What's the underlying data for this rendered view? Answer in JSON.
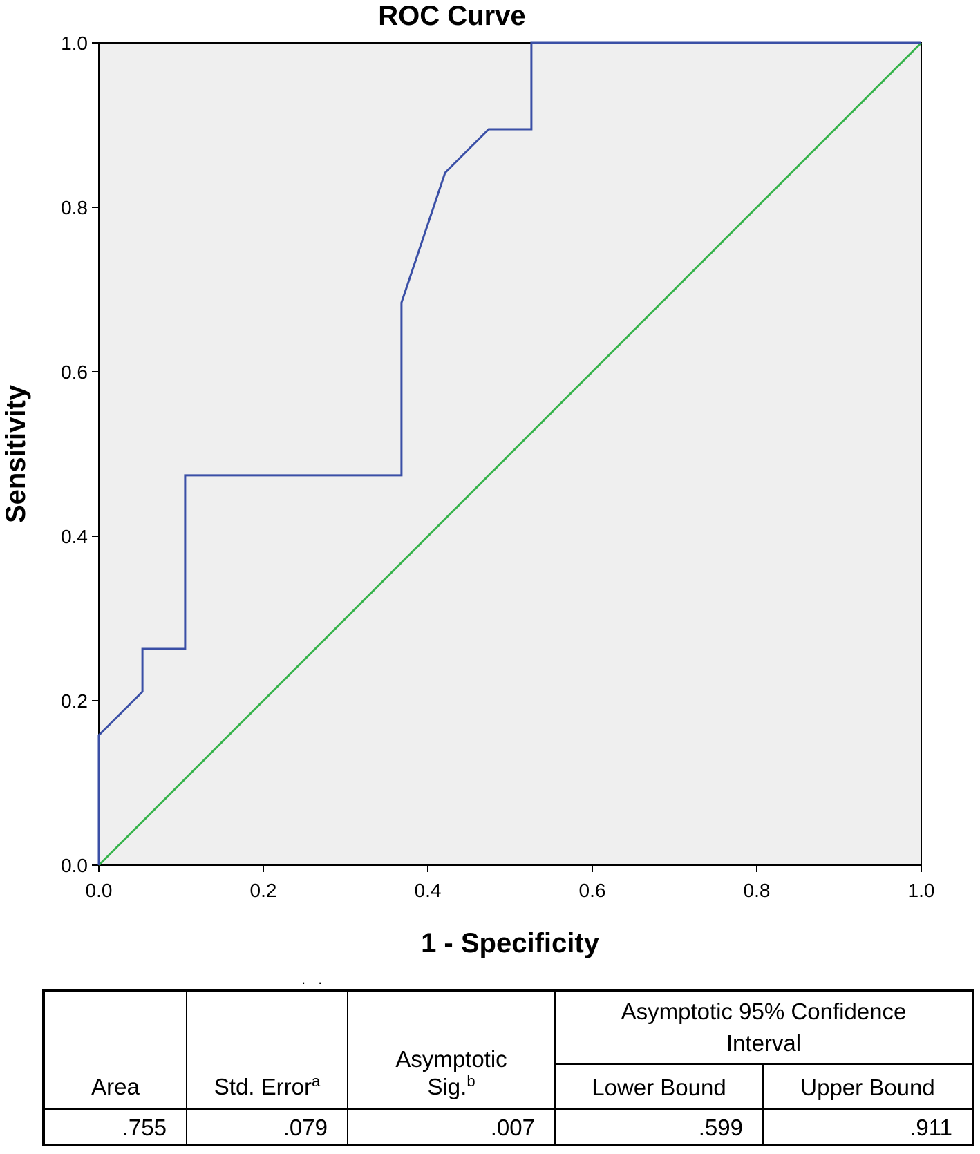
{
  "chart_data": {
    "type": "line",
    "title": "ROC Curve",
    "xlabel": "1 - Specificity",
    "ylabel": "Sensitivity",
    "xlim": [
      0,
      1
    ],
    "ylim": [
      0,
      1
    ],
    "x_ticks": [
      "0.0",
      "0.2",
      "0.4",
      "0.6",
      "0.8",
      "1.0"
    ],
    "y_ticks": [
      "0.0",
      "0.2",
      "0.4",
      "0.6",
      "0.8",
      "1.0"
    ],
    "grid": false,
    "series": [
      {
        "name": "ROC curve",
        "color": "#3a4fa6",
        "x": [
          0,
          0,
          0.053,
          0.053,
          0.105,
          0.105,
          0.368,
          0.368,
          0.421,
          0.474,
          0.526,
          0.526,
          1.0
        ],
        "y": [
          0,
          0.158,
          0.211,
          0.263,
          0.263,
          0.474,
          0.474,
          0.684,
          0.842,
          0.895,
          0.895,
          1.0,
          1.0
        ]
      },
      {
        "name": "Reference line",
        "color": "#35b34a",
        "x": [
          0,
          1
        ],
        "y": [
          0,
          1
        ]
      }
    ],
    "plot_background": "#efefef"
  },
  "table": {
    "dots": ". .",
    "headers": {
      "area": "Area",
      "std_error": "Std. Error",
      "std_error_sup": "a",
      "sig_line1": "Asymptotic",
      "sig_line2": "Sig.",
      "sig_sup": "b",
      "ci_group": "Asymptotic 95% Confidence Interval",
      "lower": "Lower Bound",
      "upper": "Upper Bound"
    },
    "row": {
      "area": ".755",
      "std_error": ".079",
      "sig": ".007",
      "lower": ".599",
      "upper": ".911"
    }
  }
}
